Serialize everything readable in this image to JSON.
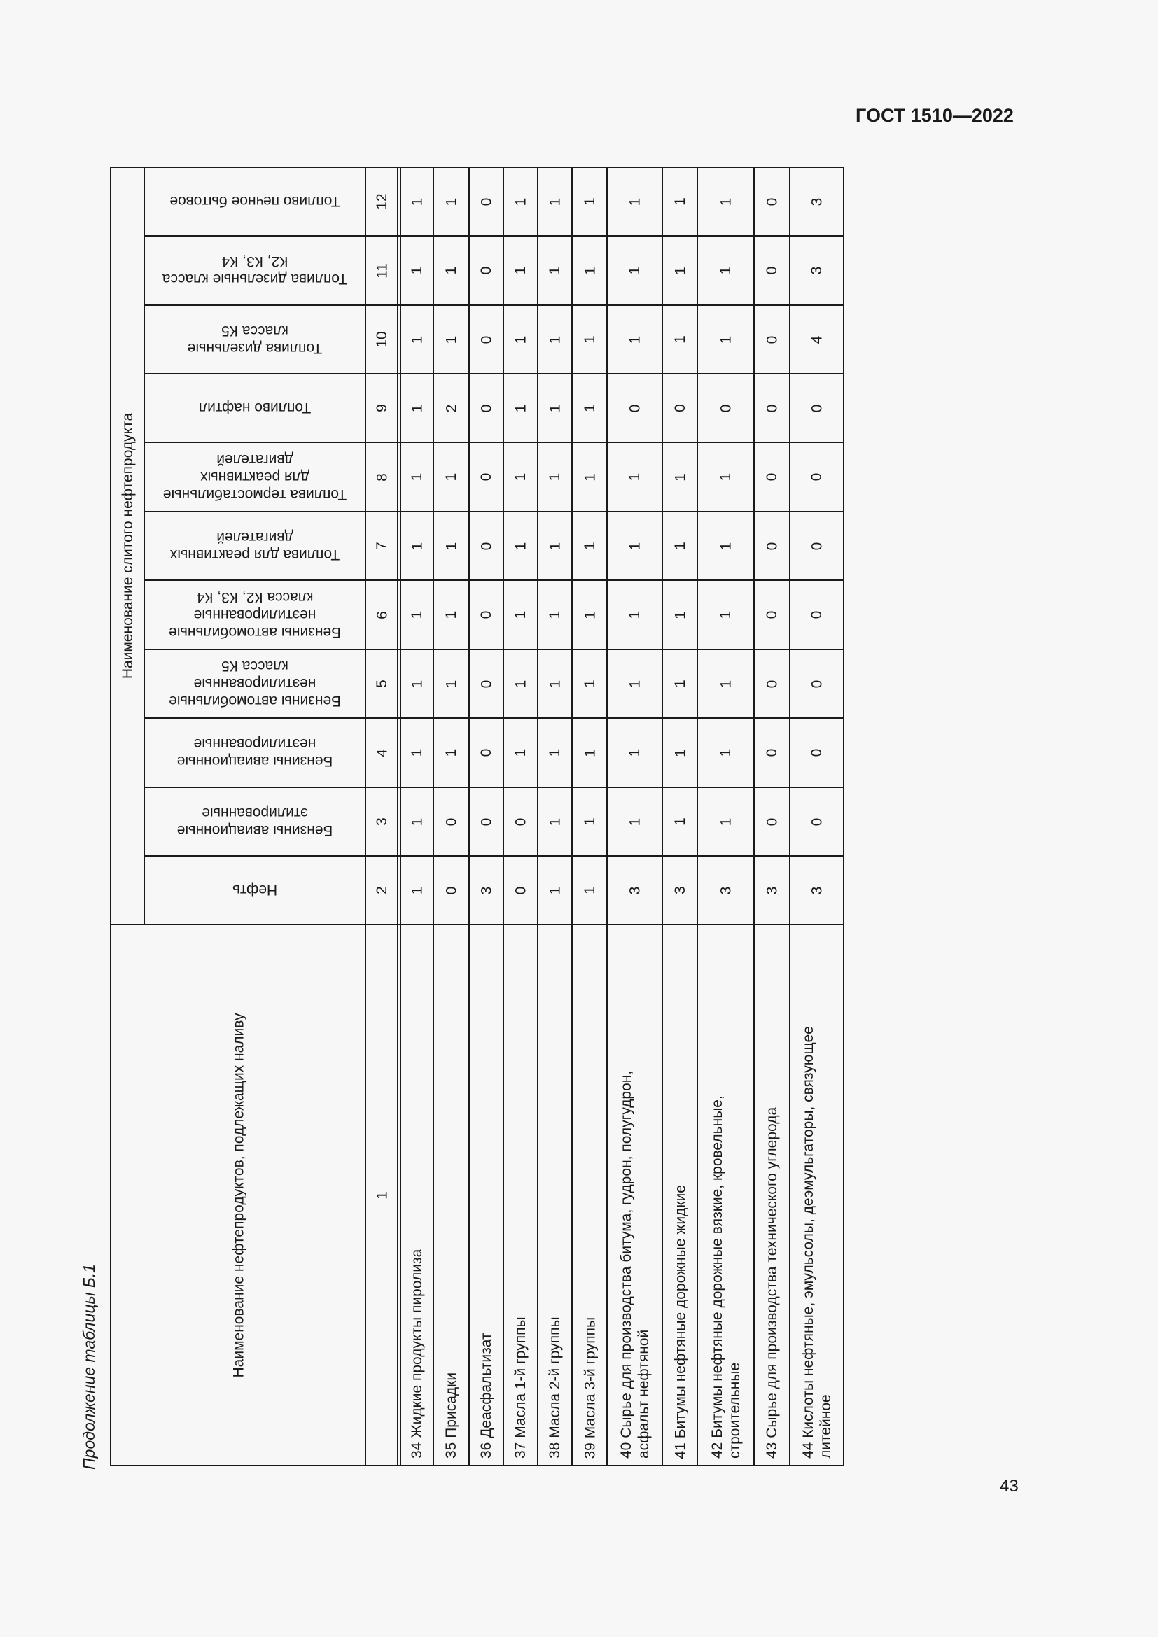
{
  "header": {
    "doc_code": "ГОСТ 1510—2022"
  },
  "caption": "Продолжение таблицы Б.1",
  "footer": {
    "page_number": "43"
  },
  "table": {
    "first_column_header": "Наименование нефтепродуктов, подлежащих наливу",
    "group_header": "Наименование слитого нефтепродукта",
    "column_numbers": [
      "1",
      "2",
      "3",
      "4",
      "5",
      "6",
      "7",
      "8",
      "9",
      "10",
      "11",
      "12"
    ],
    "column_headers": [
      "Нефть",
      "Бензины авиационные\nэтилированные",
      "Бензины авиационные\nнеэтилированные",
      "Бензины автомобильные\nнеэтилированные\nкласса К5",
      "Бензины автомобильные\nнеэтилированные\nкласса К2, К3, К4",
      "Топлива для реактивных\nдвигателей",
      "Топлива термостабильные\nдля реактивных\nдвигателей",
      "Топливо нафтил",
      "Топлива дизельные\nкласса К5",
      "Топлива дизельные класса\nК2, К3, К4",
      "Топливо печное бытовое"
    ],
    "rows": [
      {
        "label": "34 Жидкие продукты пиролиза",
        "values": [
          "1",
          "1",
          "1",
          "1",
          "1",
          "1",
          "1",
          "1",
          "1",
          "1",
          "1"
        ]
      },
      {
        "label": "35 Присадки",
        "values": [
          "0",
          "0",
          "1",
          "1",
          "1",
          "1",
          "1",
          "2",
          "1",
          "1",
          "1"
        ]
      },
      {
        "label": "36 Деасфальтизат",
        "values": [
          "3",
          "0",
          "0",
          "0",
          "0",
          "0",
          "0",
          "0",
          "0",
          "0",
          "0"
        ]
      },
      {
        "label": "37 Масла 1-й группы",
        "values": [
          "0",
          "0",
          "1",
          "1",
          "1",
          "1",
          "1",
          "1",
          "1",
          "1",
          "1"
        ]
      },
      {
        "label": "38 Масла 2-й группы",
        "values": [
          "1",
          "1",
          "1",
          "1",
          "1",
          "1",
          "1",
          "1",
          "1",
          "1",
          "1"
        ]
      },
      {
        "label": "39 Масла 3-й группы",
        "values": [
          "1",
          "1",
          "1",
          "1",
          "1",
          "1",
          "1",
          "1",
          "1",
          "1",
          "1"
        ]
      },
      {
        "label": "40 Сырье для производства битума, гудрон, полугудрон,\nасфальт нефтяной",
        "values": [
          "3",
          "1",
          "1",
          "1",
          "1",
          "1",
          "1",
          "0",
          "1",
          "1",
          "1"
        ]
      },
      {
        "label": "41 Битумы нефтяные дорожные жидкие",
        "values": [
          "3",
          "1",
          "1",
          "1",
          "1",
          "1",
          "1",
          "0",
          "1",
          "1",
          "1"
        ]
      },
      {
        "label": "42 Битумы нефтяные дорожные вязкие, кровельные,\nстроительные",
        "values": [
          "3",
          "1",
          "1",
          "1",
          "1",
          "1",
          "1",
          "0",
          "1",
          "1",
          "1"
        ]
      },
      {
        "label": "43 Сырье для производства технического углерода",
        "values": [
          "3",
          "0",
          "0",
          "0",
          "0",
          "0",
          "0",
          "0",
          "0",
          "0",
          "0"
        ]
      },
      {
        "label": "44 Кислоты нефтяные, эмульсолы, деэмульгаторы, связующее\nлитейное",
        "values": [
          "3",
          "0",
          "0",
          "0",
          "0",
          "0",
          "0",
          "0",
          "4",
          "3",
          "3"
        ]
      }
    ]
  }
}
